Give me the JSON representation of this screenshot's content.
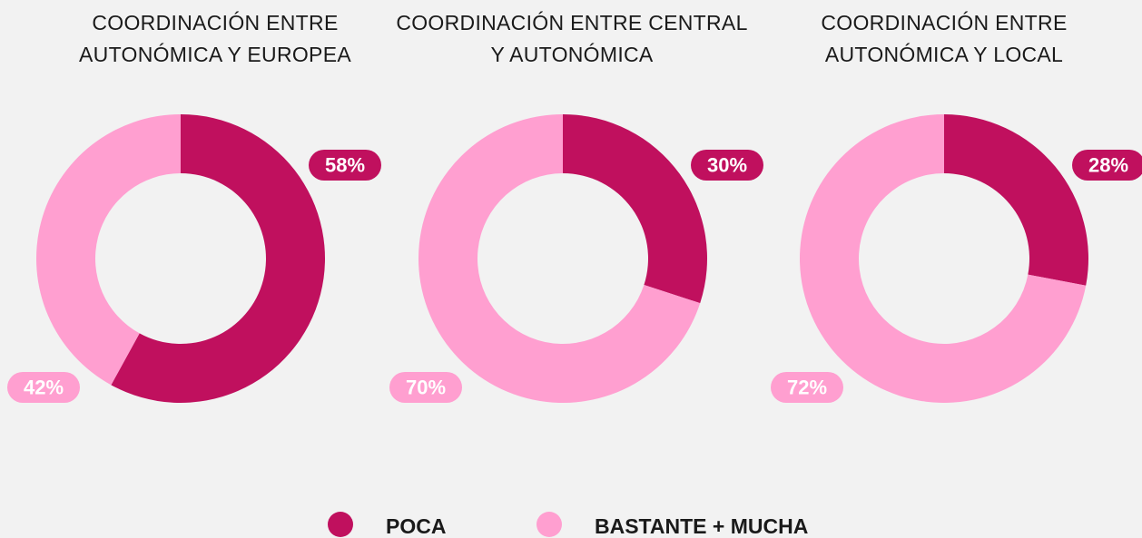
{
  "chart_data": [
    {
      "type": "pie",
      "donut": true,
      "title": "COORDINACIÓN ENTRE\nAUTONÓMICA Y EUROPEA",
      "values": [
        58,
        42
      ],
      "value_labels": [
        "58%",
        "42%"
      ]
    },
    {
      "type": "pie",
      "donut": true,
      "title": "COORDINACIÓN ENTRE CENTRAL\nY AUTONÓMICA",
      "values": [
        30,
        70
      ],
      "value_labels": [
        "30%",
        "70%"
      ]
    },
    {
      "type": "pie",
      "donut": true,
      "title": "COORDINACIÓN ENTRE\nAUTONÓMICA Y LOCAL",
      "values": [
        28,
        72
      ],
      "value_labels": [
        "28%",
        "72%"
      ]
    }
  ],
  "legend": {
    "categories": [
      "POCA",
      "BASTANTE + MUCHA"
    ],
    "colors": [
      "#c0105e",
      "#ff9fd0"
    ]
  }
}
